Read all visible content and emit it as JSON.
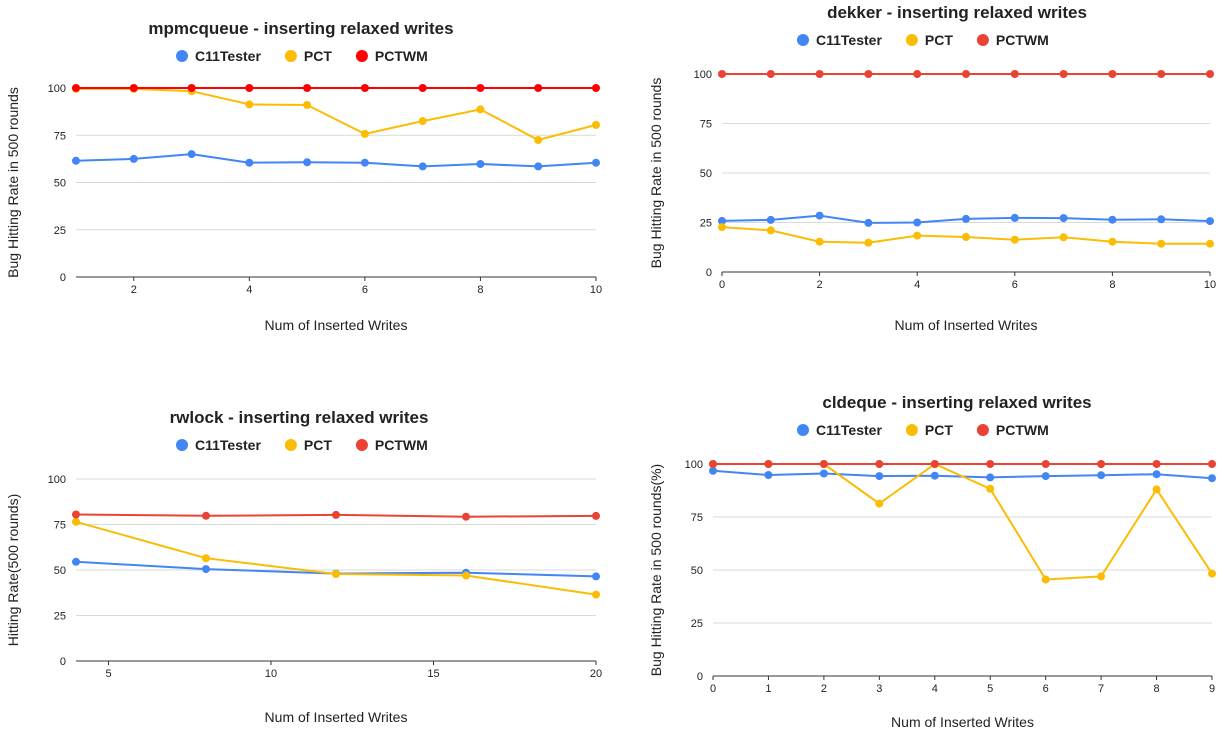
{
  "chart_data": [
    {
      "type": "line",
      "title": "mpmcqueue - inserting relaxed writes",
      "xlabel": "Num of Inserted Writes",
      "ylabel": "Bug Hitting Rate in 500 rounds",
      "x": [
        1,
        2,
        3,
        4,
        5,
        6,
        7,
        8,
        9,
        10
      ],
      "xlim": [
        1,
        10
      ],
      "ylim": [
        0,
        100
      ],
      "xticks": [
        "2",
        "4",
        "6",
        "8",
        "10"
      ],
      "yticks": [
        "0",
        "25",
        "50",
        "75",
        "100"
      ],
      "grid": true,
      "legend_position": "top",
      "series": [
        {
          "name": "C11Tester",
          "color": "#4285f4",
          "values": [
            61.5,
            62.5,
            65,
            60.5,
            60.7,
            60.5,
            58.5,
            59.8,
            58.5,
            60.5
          ]
        },
        {
          "name": "PCT",
          "color": "#fbbc04",
          "values": [
            99.5,
            99.5,
            98.3,
            91.3,
            91,
            75.7,
            82.5,
            88.7,
            72.5,
            80.5
          ]
        },
        {
          "name": "PCTWM",
          "color": "#ff0000",
          "values": [
            100,
            100,
            100,
            100,
            100,
            100,
            100,
            100,
            100,
            100
          ]
        }
      ]
    },
    {
      "type": "line",
      "title": "dekker - inserting relaxed writes",
      "xlabel": "Num  of Inserted Writes",
      "ylabel": "Bug Hitting Rate in 500 rounds",
      "x": [
        0,
        1,
        2,
        3,
        4,
        5,
        6,
        7,
        8,
        9,
        10
      ],
      "xlim": [
        0,
        10
      ],
      "ylim": [
        0,
        100
      ],
      "xticks": [
        "0",
        "2",
        "4",
        "6",
        "8",
        "10"
      ],
      "yticks": [
        "0",
        "25",
        "50",
        "75",
        "100"
      ],
      "grid": true,
      "legend_position": "top",
      "series": [
        {
          "name": "C11Tester",
          "color": "#4285f4",
          "values": [
            25.8,
            26.3,
            28.5,
            24.8,
            25,
            26.8,
            27.3,
            27.2,
            26.4,
            26.6,
            25.7
          ]
        },
        {
          "name": "PCT",
          "color": "#fbbc04",
          "values": [
            22.7,
            21,
            15.3,
            14.8,
            18.4,
            17.7,
            16.3,
            17.5,
            15.3,
            14.3,
            14.3
          ]
        },
        {
          "name": "PCTWM",
          "color": "#ea4335",
          "values": [
            100,
            100,
            100,
            100,
            100,
            100,
            100,
            100,
            100,
            100,
            100
          ]
        }
      ]
    },
    {
      "type": "line",
      "title": "rwlock - inserting relaxed writes",
      "xlabel": "Num  of Inserted Writes",
      "ylabel": "Hitting Rate(500 rounds)",
      "x": [
        4,
        8,
        12,
        16,
        20
      ],
      "xlim": [
        4,
        20
      ],
      "ylim": [
        0,
        100
      ],
      "xticks": [
        "5",
        "10",
        "15",
        "20"
      ],
      "yticks": [
        "0",
        "25",
        "50",
        "75",
        "100"
      ],
      "grid": true,
      "legend_position": "top",
      "series": [
        {
          "name": "C11Tester",
          "color": "#4285f4",
          "values": [
            54.5,
            50.5,
            48,
            48.5,
            46.5
          ]
        },
        {
          "name": "PCT",
          "color": "#fbbc04",
          "values": [
            76.5,
            56.5,
            47.8,
            47,
            36.5
          ]
        },
        {
          "name": "PCTWM",
          "color": "#ea4335",
          "values": [
            80.5,
            79.8,
            80.3,
            79.3,
            79.7
          ]
        }
      ]
    },
    {
      "type": "line",
      "title": "cldeque - inserting relaxed writes",
      "xlabel": "Num  of Inserted Writes",
      "ylabel": "Bug Hitting Rate in 500 rounds(%)",
      "x": [
        0,
        1,
        2,
        3,
        4,
        5,
        6,
        7,
        8,
        9
      ],
      "xlim": [
        0,
        9
      ],
      "ylim": [
        0,
        100
      ],
      "xticks": [
        "0",
        "1",
        "2",
        "3",
        "4",
        "5",
        "6",
        "7",
        "8",
        "9"
      ],
      "yticks": [
        "0",
        "25",
        "50",
        "75",
        "100"
      ],
      "grid": true,
      "legend_position": "top",
      "series": [
        {
          "name": "C11Tester",
          "color": "#4285f4",
          "values": [
            96.8,
            94.8,
            95.5,
            94.3,
            94.5,
            93.7,
            94.3,
            94.7,
            95.2,
            93.3
          ]
        },
        {
          "name": "PCT",
          "color": "#fbbc04",
          "values": [
            100,
            100,
            100,
            81.3,
            100,
            88.3,
            45.5,
            47,
            88,
            48.3
          ]
        },
        {
          "name": "PCTWM",
          "color": "#ea4335",
          "values": [
            100,
            100,
            100,
            100,
            100,
            100,
            100,
            100,
            100,
            100
          ]
        }
      ]
    }
  ]
}
